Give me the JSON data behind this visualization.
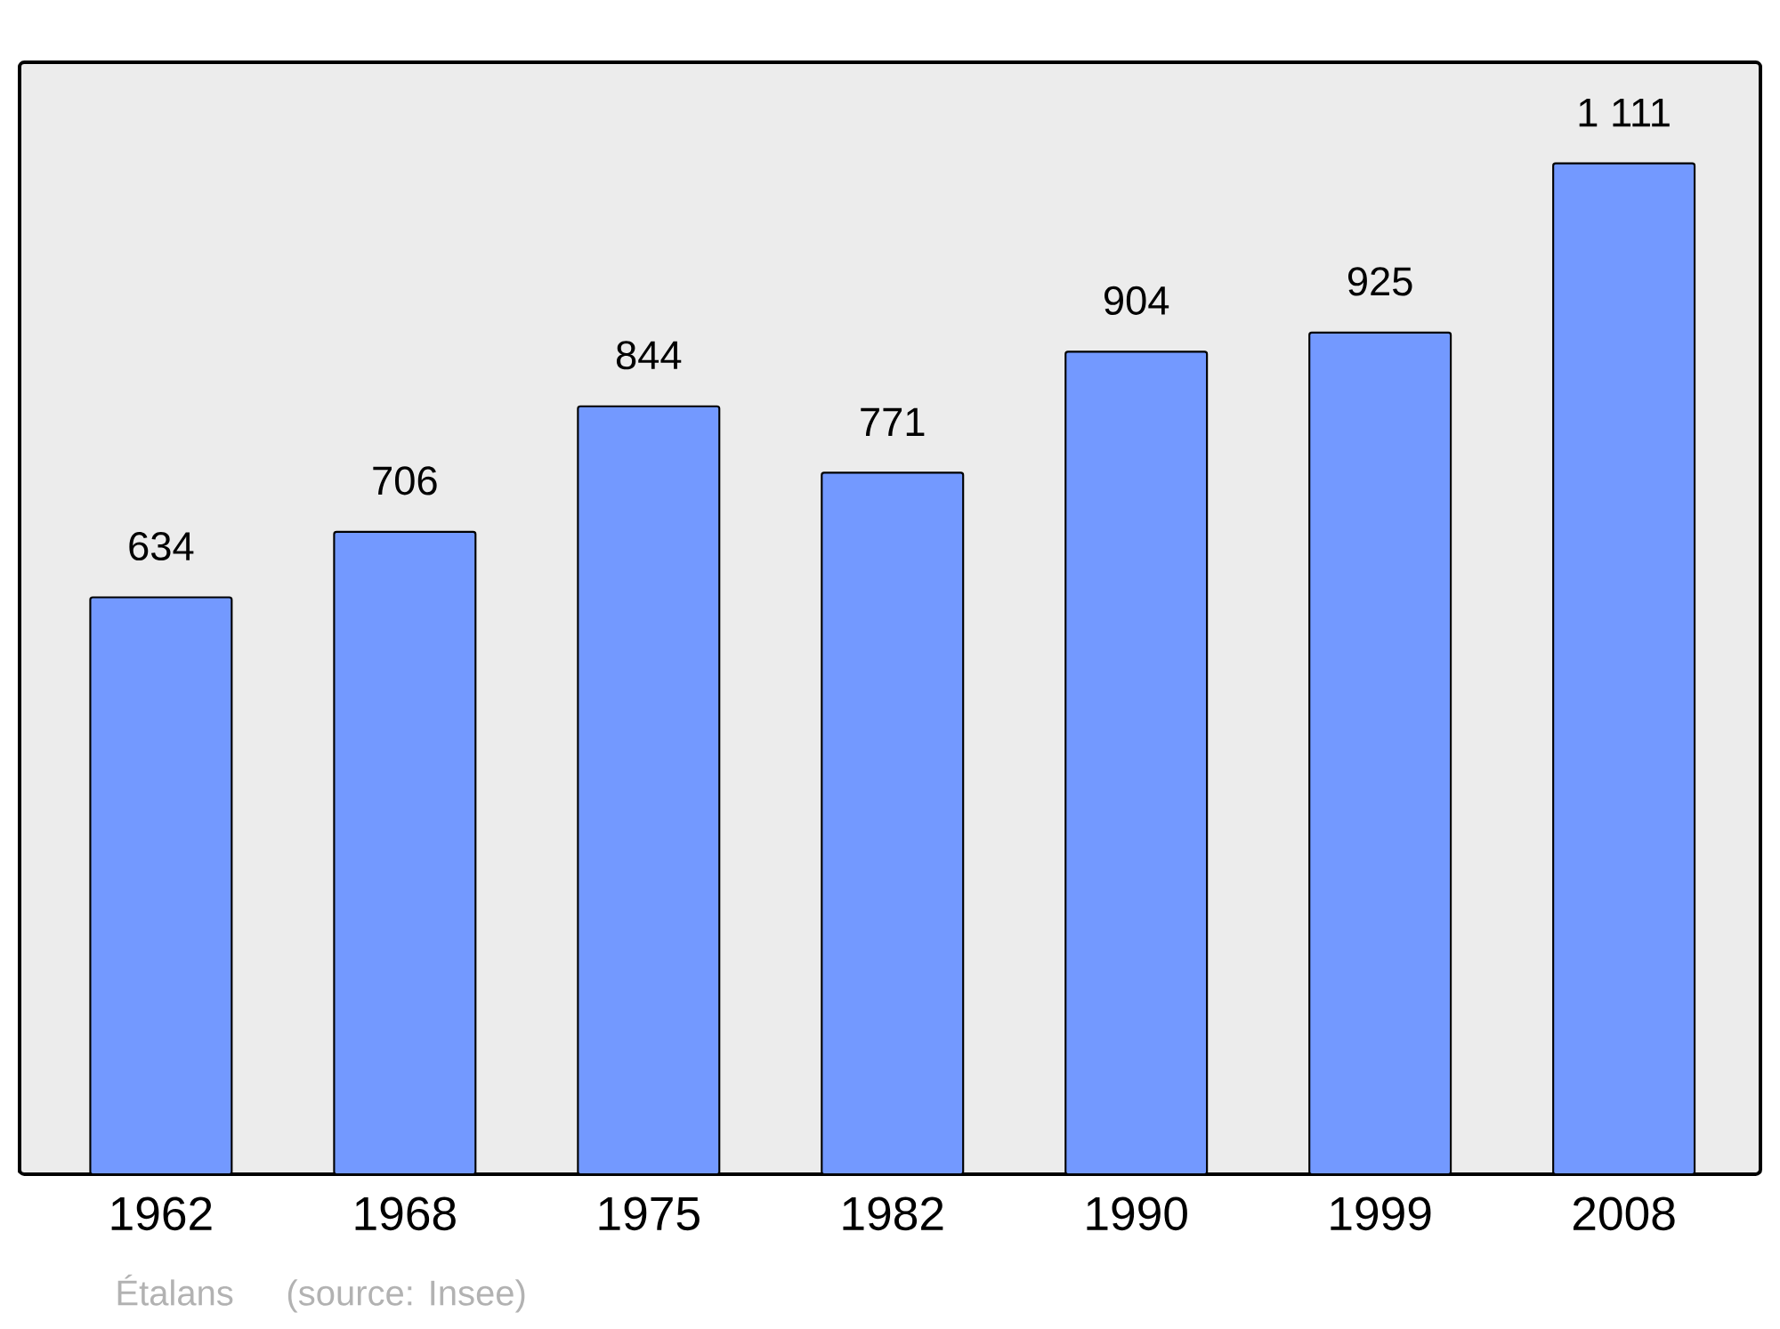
{
  "chart_data": {
    "type": "bar",
    "categories": [
      "1962",
      "1968",
      "1975",
      "1982",
      "1990",
      "1999",
      "2008"
    ],
    "values": [
      634,
      706,
      844,
      771,
      904,
      925,
      1111
    ],
    "value_labels": [
      "634",
      "706",
      "844",
      "771",
      "904",
      "925",
      "1 111"
    ],
    "color": "#7399ff",
    "annotations": [
      "Étalans",
      "(source: Insee)"
    ]
  }
}
